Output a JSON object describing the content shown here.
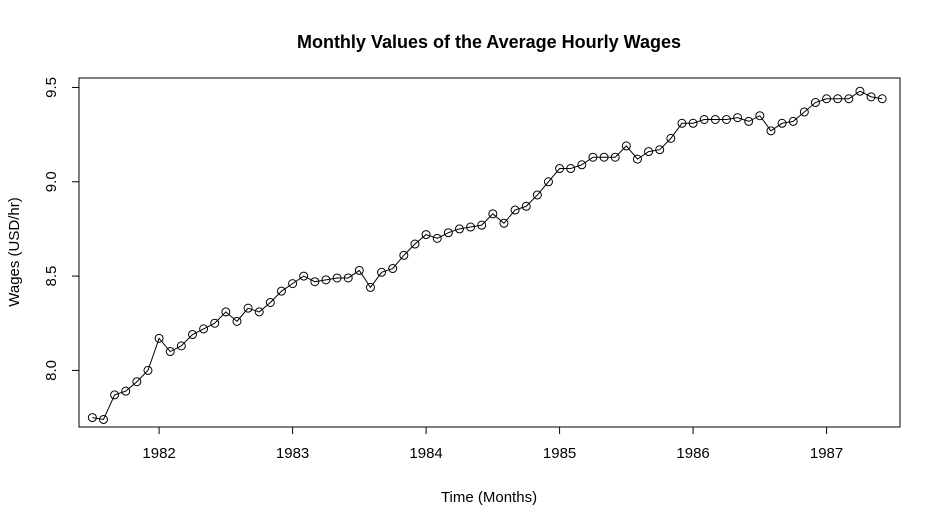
{
  "chart_data": {
    "type": "line",
    "title": "Monthly Values of the Average Hourly Wages",
    "xlabel": "Time (Months)",
    "ylabel": "Wages (USD/hr)",
    "xlim": [
      1981.4,
      1987.55
    ],
    "ylim": [
      7.7,
      9.55
    ],
    "x_ticks": [
      1982,
      1983,
      1984,
      1985,
      1986,
      1987
    ],
    "x_tick_labels": [
      "1982",
      "1983",
      "1984",
      "1985",
      "1986",
      "1987"
    ],
    "y_ticks": [
      8.0,
      8.5,
      9.0,
      9.5
    ],
    "y_tick_labels": [
      "8.0",
      "8.5",
      "9.0",
      "9.5"
    ],
    "grid": false,
    "marker": "open-circle",
    "line_color": "#000000",
    "start": {
      "year": 1981,
      "month": 7
    },
    "values": [
      7.75,
      7.74,
      7.87,
      7.89,
      7.94,
      8.0,
      8.17,
      8.1,
      8.13,
      8.19,
      8.22,
      8.25,
      8.31,
      8.26,
      8.33,
      8.31,
      8.36,
      8.42,
      8.46,
      8.5,
      8.47,
      8.48,
      8.49,
      8.49,
      8.53,
      8.44,
      8.52,
      8.54,
      8.61,
      8.67,
      8.72,
      8.7,
      8.73,
      8.75,
      8.76,
      8.77,
      8.83,
      8.78,
      8.85,
      8.87,
      8.93,
      9.0,
      9.07,
      9.07,
      9.09,
      9.13,
      9.13,
      9.13,
      9.19,
      9.12,
      9.16,
      9.17,
      9.23,
      9.31,
      9.31,
      9.33,
      9.33,
      9.33,
      9.34,
      9.32,
      9.35,
      9.27,
      9.31,
      9.32,
      9.37,
      9.42,
      9.44,
      9.44,
      9.44,
      9.48,
      9.45,
      9.44
    ]
  }
}
